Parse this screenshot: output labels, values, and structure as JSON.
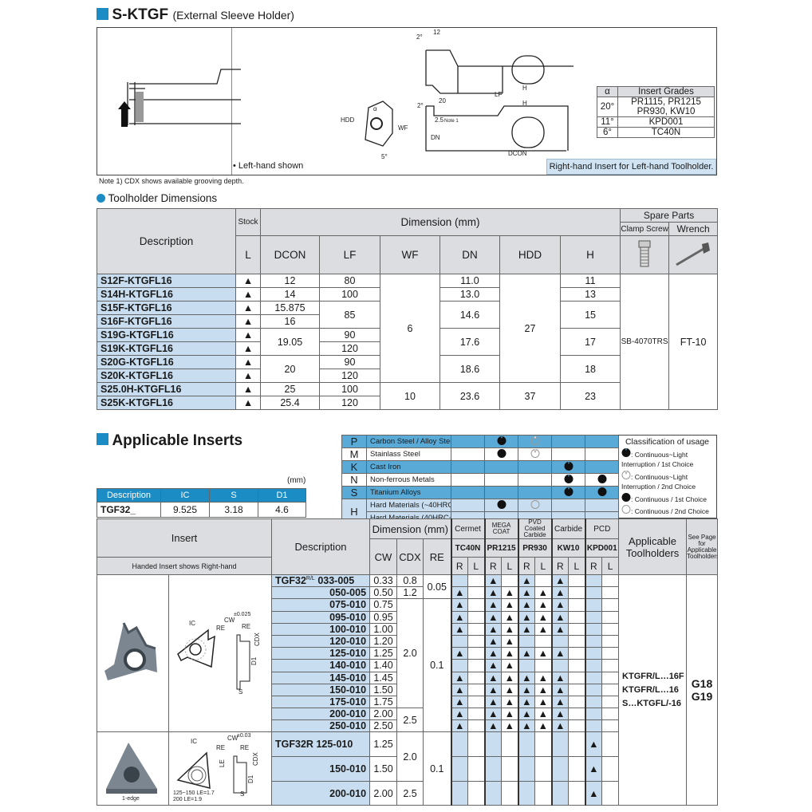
{
  "header": {
    "title": "S-KTGF",
    "subtitle": "(External Sleeve Holder)",
    "accent": "#1c8cc4"
  },
  "diagram": {
    "left_hand_note": "Left-hand shown",
    "dims": {
      "d12": "12",
      "d2a": "2°",
      "d20": "20",
      "d2b": "2°",
      "d25": "2.5",
      "note1": "Note 1",
      "lf": "LF",
      "h1": "H",
      "h2": "H",
      "wf": "WF",
      "dn": "DN",
      "dcon": "DCON",
      "hdd": "HDD",
      "alpha": "α",
      "d5": "5°"
    },
    "grades_table": {
      "head": [
        "α",
        "Insert Grades"
      ],
      "rows": [
        [
          "20°",
          "PR1115, PR1215 PR930, KW10"
        ],
        [
          "11°",
          "KPD001"
        ],
        [
          "6°",
          "TC40N"
        ]
      ]
    },
    "rh_note": "Right-hand Insert for Left-hand Toolholder."
  },
  "note1": "Note 1) CDX shows available grooving depth.",
  "toolholder": {
    "section_title": "Toolholder Dimensions",
    "head": {
      "description": "Description",
      "stock": "Stock",
      "l": "L",
      "dimension": "Dimension (mm)",
      "spare": "Spare Parts",
      "clamp": "Clamp Screw",
      "wrench": "Wrench",
      "cols": [
        "DCON",
        "LF",
        "WF",
        "DN",
        "HDD",
        "H"
      ]
    },
    "rows": [
      {
        "d": "S12F-KTGFL16",
        "s": "▲",
        "dcon": "12",
        "lf": "80",
        "dn": "11.0",
        "h": "11"
      },
      {
        "d": "S14H-KTGFL16",
        "s": "▲",
        "dcon": "14",
        "lf": "100",
        "dn": "13.0",
        "h": "13"
      },
      {
        "d": "S15F-KTGFL16",
        "s": "▲",
        "dcon": "15.875",
        "lf": "85",
        "dn": "14.6",
        "h": "15"
      },
      {
        "d": "S16F-KTGFL16",
        "s": "▲",
        "dcon": "16"
      },
      {
        "d": "S19G-KTGFL16",
        "s": "▲",
        "dcon": "19.05",
        "lf": "90",
        "dn": "17.6",
        "h": "17"
      },
      {
        "d": "S19K-KTGFL16",
        "s": "▲",
        "lf": "120"
      },
      {
        "d": "S20G-KTGFL16",
        "s": "▲",
        "dcon": "20",
        "lf": "90",
        "dn": "18.6",
        "h": "18"
      },
      {
        "d": "S20K-KTGFL16",
        "s": "▲",
        "lf": "120"
      },
      {
        "d": "S25.0H-KTGFL16",
        "s": "▲",
        "dcon": "25",
        "lf": "100",
        "dn": "23.6",
        "h": "23"
      },
      {
        "d": "S25K-KTGFL16",
        "s": "▲",
        "dcon": "25.4",
        "lf": "120"
      }
    ],
    "wf": [
      "6",
      "10"
    ],
    "hdd": [
      "27",
      "37"
    ],
    "clamp": "SB-4070TRS",
    "wrench": "FT-10"
  },
  "inserts": {
    "section_title": "Applicable Inserts",
    "unit": "(mm)",
    "dims_table": {
      "head": [
        "Description",
        "IC",
        "S",
        "D1"
      ],
      "row": [
        "TGF32_",
        "9.525",
        "3.18",
        "4.6"
      ]
    },
    "classification": {
      "rows": [
        {
          "l": "P",
          "m": "Carbon Steel / Alloy Steel",
          "marks": [
            "",
            "notched",
            "open-notched",
            "",
            ""
          ]
        },
        {
          "l": "M",
          "m": "Stainlass Steel",
          "marks": [
            "",
            "filled",
            "open-notched",
            "",
            ""
          ]
        },
        {
          "l": "K",
          "m": "Cast Iron",
          "marks": [
            "",
            "",
            "",
            "notched",
            ""
          ]
        },
        {
          "l": "N",
          "m": "Non-ferrous Metals",
          "marks": [
            "",
            "",
            "",
            "notched",
            "filled"
          ]
        },
        {
          "l": "S",
          "m": "Titanium Alloys",
          "marks": [
            "",
            "",
            "",
            "notched",
            "filled"
          ]
        },
        {
          "l": "H",
          "m": "Hard Materials (~40HRC)",
          "marks": [
            "",
            "filled",
            "open",
            "",
            ""
          ]
        },
        {
          "l": "",
          "m": "Hard Materials (40HRC~)",
          "marks": [
            "",
            "",
            "",
            "",
            ""
          ]
        }
      ],
      "legend": {
        "title": "Classification of usage",
        "items": [
          ": Continuous~Light Interruption / 1st Choice",
          ": Continuous~Light Interruption / 2nd Choice",
          ": Continuous / 1st Choice",
          ": Continuous / 2nd Choice"
        ]
      }
    },
    "head": {
      "insert": "Insert",
      "handed": "Handed Insert shows Right-hand",
      "description": "Description",
      "dimension": "Dimension (mm)",
      "cw": "CW",
      "cdx": "CDX",
      "re": "RE",
      "groups": [
        {
          "cat": "Cermet",
          "grade": "TC40N"
        },
        {
          "cat": "MEGA COAT",
          "grade": "PR1215"
        },
        {
          "cat": "PVD Coated Carbide",
          "grade": "PR930"
        },
        {
          "cat": "Carbide",
          "grade": "KW10"
        },
        {
          "cat": "PCD",
          "grade": "KPD001"
        }
      ],
      "r": "R",
      "l": "L",
      "applicable": "Applicable Toolholders",
      "see_page": "See Page for Applicable Toolholders"
    },
    "group1": {
      "prefix": "TGF32",
      "hand": "R/L",
      "rows": [
        {
          "c": "033-005",
          "cw": "0.33",
          "cdx": "0.8",
          "re": "0.05",
          "g": "0010101000"
        },
        {
          "c": "050-005",
          "cw": "0.50",
          "cdx": "1.2",
          "g": "1011111000"
        },
        {
          "c": "075-010",
          "cw": "0.75",
          "cdx": "2.0",
          "re": "0.1",
          "g": "1011111000"
        },
        {
          "c": "095-010",
          "cw": "0.95",
          "g": "1011111000"
        },
        {
          "c": "100-010",
          "cw": "1.00",
          "g": "1011111000"
        },
        {
          "c": "120-010",
          "cw": "1.20",
          "g": "0011000000"
        },
        {
          "c": "125-010",
          "cw": "1.25",
          "g": "1011111000"
        },
        {
          "c": "140-010",
          "cw": "1.40",
          "g": "0011000000"
        },
        {
          "c": "145-010",
          "cw": "1.45",
          "g": "1011111000"
        },
        {
          "c": "150-010",
          "cw": "1.50",
          "g": "1011111000"
        },
        {
          "c": "175-010",
          "cw": "1.75",
          "g": "1011111000"
        },
        {
          "c": "200-010",
          "cw": "2.00",
          "cdx": "2.5",
          "g": "1011111000"
        },
        {
          "c": "250-010",
          "cw": "2.50",
          "g": "1011111000"
        }
      ],
      "drawing": {
        "ic": "IC",
        "cw": "CW",
        "tol": "±0.025",
        "re": "RE",
        "cdx": "CDX",
        "d1": "D1",
        "s": "S",
        "deg": "2°"
      }
    },
    "group2": {
      "prefix": "TGF32R",
      "rows": [
        {
          "c": "125-010",
          "cw": "1.25",
          "cdx": "2.0",
          "re": "0.1",
          "g": "0000000010"
        },
        {
          "c": "150-010",
          "cw": "1.50",
          "g": "0000000010"
        },
        {
          "c": "200-010",
          "cw": "2.00",
          "cdx": "2.5",
          "g": "0000000010"
        }
      ],
      "edge": "1-edge",
      "drawing": {
        "ic": "IC",
        "cw": "CW",
        "tol": "±0.03",
        "re": "RE",
        "le": "LE",
        "cdx": "CDX",
        "d1": "D1",
        "s": "S",
        "le1": "125~150 LE=1.7",
        "le2": "200      LE=1.9"
      }
    },
    "applicable": [
      "KTGFR/L…16F",
      "KTGFR/L…16",
      "S…KTGFL/-16"
    ],
    "pages": [
      "G18",
      "G19"
    ]
  }
}
